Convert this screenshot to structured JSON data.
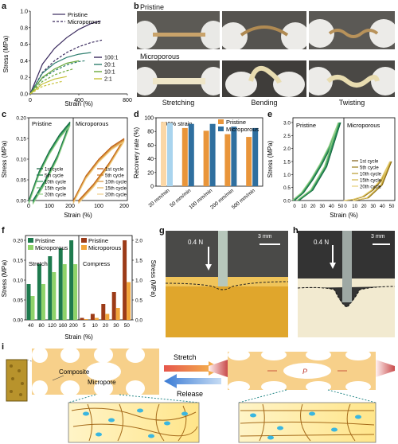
{
  "panels": {
    "a": {
      "letter": "a",
      "legend_top": [
        "Pristine",
        "Microporous"
      ],
      "legend_ratio": [
        "100:1",
        "20:1",
        "10:1",
        "2:1"
      ],
      "xlabel": "Strain (%)",
      "ylabel": "Stress (MPa)",
      "xticks": [
        "0",
        "400",
        "800"
      ],
      "yticks": [
        "0.0",
        "0.2",
        "0.4",
        "0.6",
        "0.8",
        "1.0"
      ]
    },
    "b": {
      "letter": "b",
      "row1_label": "Pristine",
      "row2_label": "Microporous",
      "captions": [
        "Stretching",
        "Bending",
        "Twisting"
      ]
    },
    "c": {
      "letter": "c",
      "left_title": "Pristine",
      "right_title": "Microporous",
      "ylabel": "Stress (MPa)",
      "xlabel": "Strain (%)",
      "cycles": [
        "1st cycle",
        "5th cycle",
        "10th cycle",
        "15th cycle",
        "20th cycle"
      ],
      "yticks": [
        "0.00",
        "0.05",
        "0.10",
        "0.15",
        "0.20"
      ],
      "xticks_left": [
        "0",
        "100",
        "200"
      ],
      "xticks_right": [
        "100",
        "200"
      ]
    },
    "d": {
      "letter": "d",
      "annotation": "200% strain",
      "ylabel": "Recovery rate (%)",
      "legend": [
        "Pristine",
        "Microporous"
      ],
      "yticks": [
        "0",
        "20",
        "40",
        "60",
        "80",
        "100"
      ],
      "categories": [
        "20 mm/min",
        "50 mm/min",
        "100 mm/min",
        "200 mm/min",
        "500 mm/min"
      ]
    },
    "e": {
      "letter": "e",
      "left_title": "Pristine",
      "right_title": "Microporous",
      "ylabel": "Stress (MPa)",
      "xlabel": "Strain (%)",
      "cycles": [
        "1st cycle",
        "5th cycle",
        "10th cycle",
        "15th cycle",
        "20th cycle"
      ],
      "yticks": [
        "0.0",
        "0.5",
        "1.0",
        "1.5",
        "2.0",
        "2.5",
        "3.0"
      ],
      "xticks": [
        "0",
        "10",
        "20",
        "30",
        "40",
        "50",
        "0",
        "10",
        "20",
        "30",
        "40",
        "50"
      ]
    },
    "f": {
      "letter": "f",
      "legend_left": [
        "Pristine",
        "Microporous"
      ],
      "legend_right": [
        "Pristine",
        "Microporous"
      ],
      "stretch_label": "Stretch",
      "compress_label": "Compress",
      "ylabel": "Stress (MPa)",
      "ylabel_right": "Stress (MPa)",
      "xlabel": "Strain (%)",
      "yticks": [
        "0.00",
        "0.05",
        "0.10",
        "0.15",
        "0.20"
      ],
      "yticks_right": [
        "0.0",
        "0.5",
        "1.0",
        "1.5",
        "2.0"
      ],
      "xticks": [
        "40",
        "80",
        "120",
        "160",
        "200",
        "5",
        "10",
        "20",
        "30",
        "50"
      ]
    },
    "g": {
      "letter": "g",
      "force": "0.4 N",
      "scale": "3 mm"
    },
    "h": {
      "letter": "h",
      "force": "0.4 N",
      "scale": "3 mm"
    },
    "i": {
      "letter": "i",
      "composite": "Composite",
      "micropore": "Micropore",
      "stretch": "Stretch",
      "release": "Release",
      "p_label": "P"
    }
  },
  "chart_data": [
    {
      "type": "line",
      "panel": "a",
      "xlim": [
        0,
        800
      ],
      "ylim": [
        0,
        1.0
      ],
      "series": [
        {
          "name": "Pristine 100:1",
          "style": "solid",
          "x": [
            0,
            100,
            200,
            300,
            400,
            500,
            580
          ],
          "y": [
            0,
            0.36,
            0.55,
            0.68,
            0.78,
            0.85,
            0.88
          ]
        },
        {
          "name": "Microporous 100:1",
          "style": "dashed",
          "x": [
            0,
            100,
            200,
            300,
            400,
            500,
            590
          ],
          "y": [
            0,
            0.26,
            0.4,
            0.5,
            0.57,
            0.62,
            0.65
          ]
        },
        {
          "name": "Pristine 20:1",
          "style": "solid",
          "x": [
            0,
            100,
            200,
            300,
            400,
            500
          ],
          "y": [
            0,
            0.25,
            0.37,
            0.44,
            0.48,
            0.5
          ]
        },
        {
          "name": "Microporous 20:1",
          "style": "dashed",
          "x": [
            0,
            100,
            200,
            300,
            400,
            450
          ],
          "y": [
            0,
            0.19,
            0.28,
            0.35,
            0.39,
            0.4
          ]
        },
        {
          "name": "Pristine 10:1",
          "style": "solid",
          "x": [
            0,
            100,
            200,
            300,
            400
          ],
          "y": [
            0,
            0.2,
            0.3,
            0.37,
            0.4
          ]
        },
        {
          "name": "Microporous 10:1",
          "style": "dashed",
          "x": [
            0,
            100,
            200,
            300,
            350
          ],
          "y": [
            0,
            0.15,
            0.23,
            0.28,
            0.3
          ]
        },
        {
          "name": "Pristine 2:1",
          "style": "solid",
          "x": [
            0,
            100,
            200,
            300
          ],
          "y": [
            0,
            0.12,
            0.18,
            0.21
          ]
        },
        {
          "name": "Microporous 2:1",
          "style": "dashed",
          "x": [
            0,
            100,
            200,
            260
          ],
          "y": [
            0,
            0.09,
            0.13,
            0.15
          ]
        }
      ]
    },
    {
      "type": "line",
      "panel": "c",
      "xlim": [
        0,
        200
      ],
      "ylim": [
        0,
        0.2
      ],
      "series": [
        {
          "name": "Pristine loading",
          "x": [
            0,
            50,
            100,
            150,
            200
          ],
          "y": [
            0,
            0.07,
            0.12,
            0.16,
            0.19
          ]
        },
        {
          "name": "Pristine unloading",
          "x": [
            20,
            80,
            140,
            200
          ],
          "y": [
            0,
            0.05,
            0.11,
            0.19
          ]
        },
        {
          "name": "Microporous loading",
          "x": [
            0,
            50,
            100,
            150,
            200
          ],
          "y": [
            0,
            0.06,
            0.1,
            0.13,
            0.15
          ]
        },
        {
          "name": "Microporous unloading",
          "x": [
            20,
            80,
            140,
            200
          ],
          "y": [
            0,
            0.04,
            0.09,
            0.15
          ]
        }
      ]
    },
    {
      "type": "bar",
      "panel": "d",
      "categories": [
        "20 mm/min",
        "50 mm/min",
        "100 mm/min",
        "200 mm/min",
        "500 mm/min"
      ],
      "ylim": [
        0,
        100
      ],
      "series": [
        {
          "name": "Pristine",
          "values": [
            94,
            85,
            81,
            76,
            72
          ]
        },
        {
          "name": "Microporous",
          "values": [
            92,
            91,
            91,
            87,
            85
          ]
        }
      ]
    },
    {
      "type": "line",
      "panel": "e",
      "xlim": [
        0,
        50
      ],
      "ylim": [
        0,
        3.0
      ],
      "series": [
        {
          "name": "Pristine loading",
          "x": [
            0,
            10,
            20,
            30,
            40,
            50
          ],
          "y": [
            0,
            0.3,
            0.8,
            1.4,
            2.1,
            3.0
          ]
        },
        {
          "name": "Pristine unloading",
          "x": [
            5,
            20,
            35,
            50
          ],
          "y": [
            0,
            0.4,
            1.3,
            3.0
          ]
        },
        {
          "name": "Microporous loading",
          "x": [
            0,
            10,
            20,
            30,
            40,
            50
          ],
          "y": [
            0,
            0.05,
            0.15,
            0.4,
            0.8,
            1.5
          ]
        },
        {
          "name": "Microporous unloading",
          "x": [
            10,
            25,
            40,
            50
          ],
          "y": [
            0,
            0.1,
            0.6,
            1.5
          ]
        }
      ]
    },
    {
      "type": "bar",
      "panel": "f-stretch",
      "categories": [
        "40",
        "80",
        "120",
        "160",
        "200"
      ],
      "ylim": [
        0,
        0.2
      ],
      "series": [
        {
          "name": "Pristine",
          "values": [
            0.09,
            0.14,
            0.16,
            0.18,
            0.2
          ]
        },
        {
          "name": "Microporous",
          "values": [
            0.06,
            0.09,
            0.12,
            0.14,
            0.14
          ]
        }
      ]
    },
    {
      "type": "bar",
      "panel": "f-compress",
      "categories": [
        "5",
        "10",
        "20",
        "30",
        "50"
      ],
      "ylim": [
        0,
        2.0
      ],
      "series": [
        {
          "name": "Pristine",
          "values": [
            0.05,
            0.15,
            0.4,
            0.7,
            2.0
          ]
        },
        {
          "name": "Microporous",
          "values": [
            0.02,
            0.05,
            0.15,
            0.3,
            0.95
          ]
        }
      ]
    }
  ]
}
